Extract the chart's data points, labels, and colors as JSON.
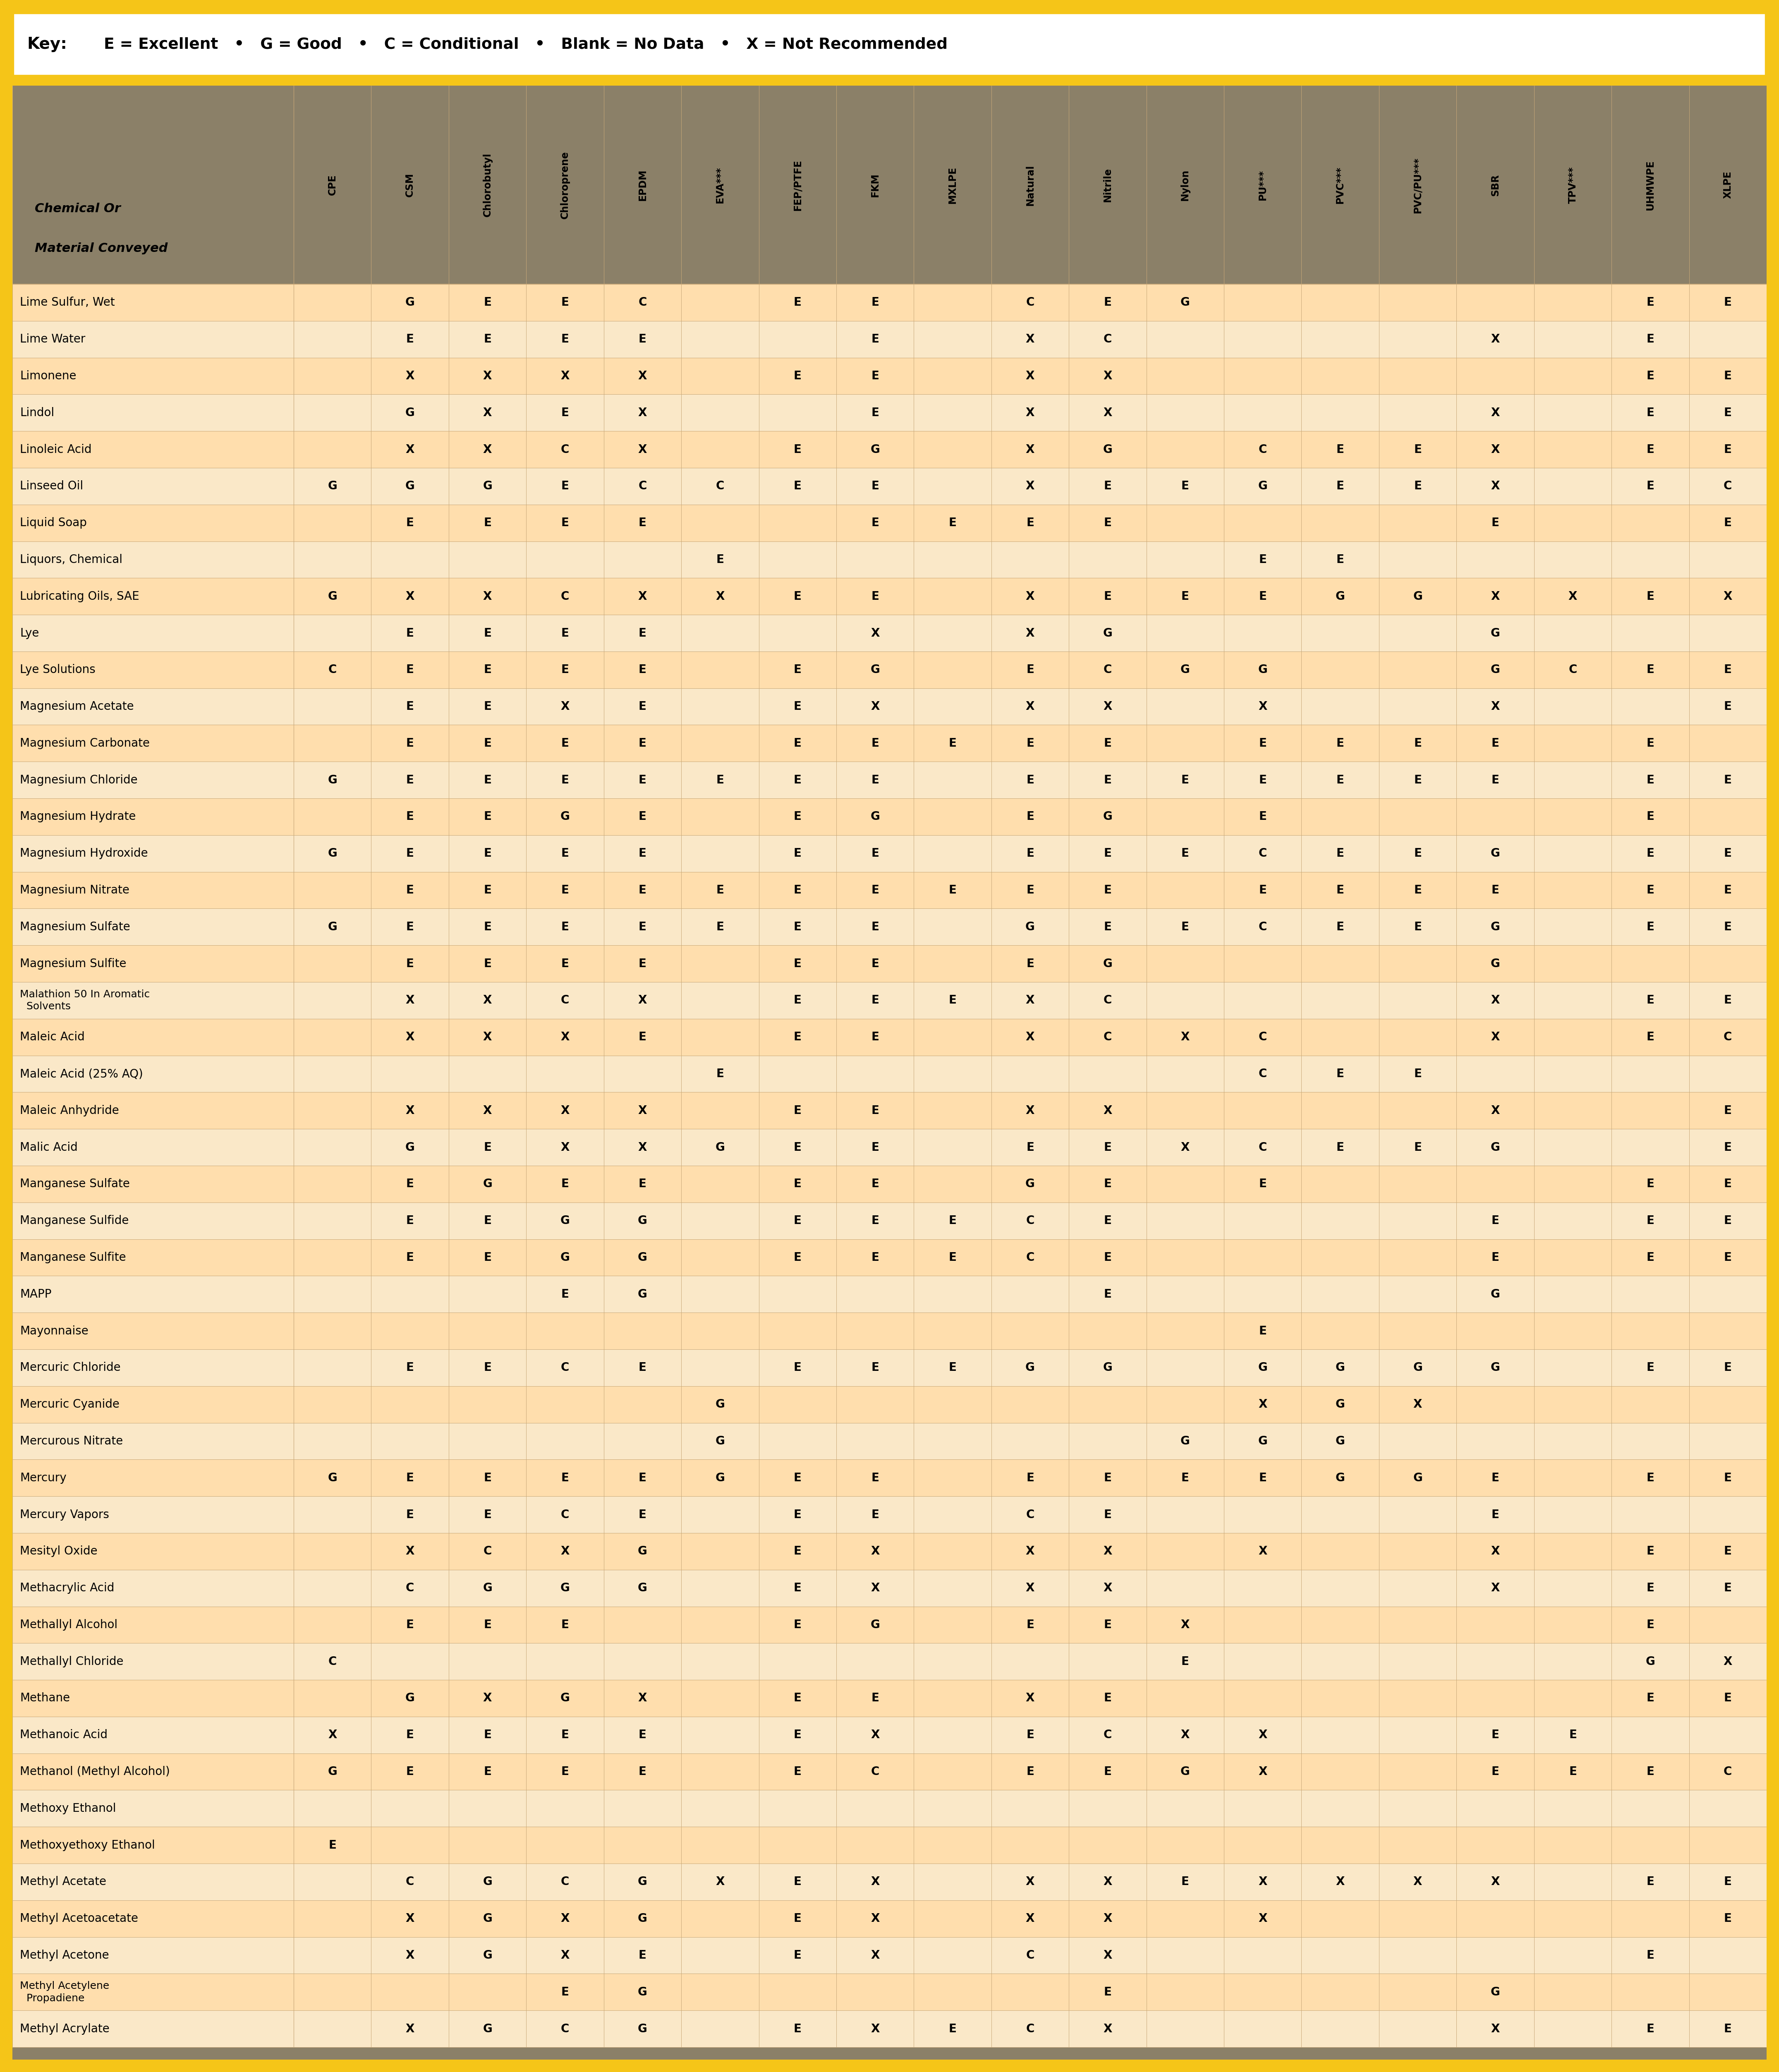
{
  "key_text_bold": "Key:",
  "key_text_normal": "  E = Excellent   •   G = Good   •   C = Conditional   •   Blank = No Data   •   X = Not Recommended",
  "header_bg": "#8B8068",
  "row_bg_even": "#FFDEAD",
  "row_bg_odd": "#FAE8C8",
  "outer_border": "#F5C518",
  "key_bg": "#FFFFFF",
  "bottom_strip_color": "#8B8068",
  "grid_color": "#C8A878",
  "col_header_label": "Chemical Or\nMaterial Conveyed",
  "columns": [
    "CPE",
    "CSM",
    "Chlorobutyl",
    "Chloroprene",
    "EPDM",
    "EVA***",
    "FEP/PTFE",
    "FKM",
    "MXLPE",
    "Natural",
    "Nitrile",
    "Nylon",
    "PU***",
    "PVC***",
    "PVC/PU***",
    "SBR",
    "TPV***",
    "UHMWPE",
    "XLPE"
  ],
  "rows": [
    {
      "chemical": "Lime Sulfur, Wet",
      "vals": [
        "",
        "G",
        "E",
        "E",
        "C",
        "",
        "E",
        "E",
        "",
        "C",
        "E",
        "G",
        "",
        "",
        "",
        "",
        "",
        "E",
        "E"
      ]
    },
    {
      "chemical": "Lime Water",
      "vals": [
        "",
        "E",
        "E",
        "E",
        "E",
        "",
        "",
        "E",
        "",
        "X",
        "C",
        "",
        "",
        "",
        "",
        "X",
        "",
        "E",
        ""
      ]
    },
    {
      "chemical": "Limonene",
      "vals": [
        "",
        "X",
        "X",
        "X",
        "X",
        "",
        "E",
        "E",
        "",
        "X",
        "X",
        "",
        "",
        "",
        "",
        "",
        "",
        "E",
        "E"
      ]
    },
    {
      "chemical": "Lindol",
      "vals": [
        "",
        "G",
        "X",
        "E",
        "X",
        "",
        "",
        "E",
        "",
        "X",
        "X",
        "",
        "",
        "",
        "",
        "X",
        "",
        "E",
        "E"
      ]
    },
    {
      "chemical": "Linoleic Acid",
      "vals": [
        "",
        "X",
        "X",
        "C",
        "X",
        "",
        "E",
        "G",
        "",
        "X",
        "G",
        "",
        "C",
        "E",
        "E",
        "X",
        "",
        "E",
        "E"
      ]
    },
    {
      "chemical": "Linseed Oil",
      "vals": [
        "G",
        "G",
        "G",
        "E",
        "C",
        "C",
        "E",
        "E",
        "",
        "X",
        "E",
        "E",
        "G",
        "E",
        "E",
        "X",
        "",
        "E",
        "C"
      ]
    },
    {
      "chemical": "Liquid Soap",
      "vals": [
        "",
        "E",
        "E",
        "E",
        "E",
        "",
        "",
        "E",
        "E",
        "E",
        "E",
        "",
        "",
        "",
        "",
        "E",
        "",
        "",
        "E"
      ]
    },
    {
      "chemical": "Liquors, Chemical",
      "vals": [
        "",
        "",
        "",
        "",
        "",
        "E",
        "",
        "",
        "",
        "",
        "",
        "",
        "E",
        "E",
        "",
        "",
        "",
        "",
        ""
      ]
    },
    {
      "chemical": "Lubricating Oils, SAE",
      "vals": [
        "G",
        "X",
        "X",
        "C",
        "X",
        "X",
        "E",
        "E",
        "",
        "X",
        "E",
        "E",
        "E",
        "G",
        "G",
        "X",
        "X",
        "E",
        "X"
      ]
    },
    {
      "chemical": "Lye",
      "vals": [
        "",
        "E",
        "E",
        "E",
        "E",
        "",
        "",
        "X",
        "",
        "X",
        "G",
        "",
        "",
        "",
        "",
        "G",
        "",
        "",
        ""
      ]
    },
    {
      "chemical": "Lye Solutions",
      "vals": [
        "C",
        "E",
        "E",
        "E",
        "E",
        "",
        "E",
        "G",
        "",
        "E",
        "C",
        "G",
        "G",
        "",
        "",
        "G",
        "C",
        "E",
        "E"
      ]
    },
    {
      "chemical": "Magnesium Acetate",
      "vals": [
        "",
        "E",
        "E",
        "X",
        "E",
        "",
        "E",
        "X",
        "",
        "X",
        "X",
        "",
        "X",
        "",
        "",
        "X",
        "",
        "",
        "E"
      ]
    },
    {
      "chemical": "Magnesium Carbonate",
      "vals": [
        "",
        "E",
        "E",
        "E",
        "E",
        "",
        "E",
        "E",
        "E",
        "E",
        "E",
        "",
        "E",
        "E",
        "E",
        "E",
        "",
        "E",
        ""
      ]
    },
    {
      "chemical": "Magnesium Chloride",
      "vals": [
        "G",
        "E",
        "E",
        "E",
        "E",
        "E",
        "E",
        "E",
        "",
        "E",
        "E",
        "E",
        "E",
        "E",
        "E",
        "E",
        "",
        "E",
        "E"
      ]
    },
    {
      "chemical": "Magnesium Hydrate",
      "vals": [
        "",
        "E",
        "E",
        "G",
        "E",
        "",
        "E",
        "G",
        "",
        "E",
        "G",
        "",
        "E",
        "",
        "",
        "",
        "",
        "E",
        ""
      ]
    },
    {
      "chemical": "Magnesium Hydroxide",
      "vals": [
        "G",
        "E",
        "E",
        "E",
        "E",
        "",
        "E",
        "E",
        "",
        "E",
        "E",
        "E",
        "C",
        "E",
        "E",
        "G",
        "",
        "E",
        "E"
      ]
    },
    {
      "chemical": "Magnesium Nitrate",
      "vals": [
        "",
        "E",
        "E",
        "E",
        "E",
        "E",
        "E",
        "E",
        "E",
        "E",
        "E",
        "",
        "E",
        "E",
        "E",
        "E",
        "",
        "E",
        "E"
      ]
    },
    {
      "chemical": "Magnesium Sulfate",
      "vals": [
        "G",
        "E",
        "E",
        "E",
        "E",
        "E",
        "E",
        "E",
        "",
        "G",
        "E",
        "E",
        "C",
        "E",
        "E",
        "G",
        "",
        "E",
        "E"
      ]
    },
    {
      "chemical": "Magnesium Sulfite",
      "vals": [
        "",
        "E",
        "E",
        "E",
        "E",
        "",
        "E",
        "E",
        "",
        "E",
        "G",
        "",
        "",
        "",
        "",
        "G",
        "",
        "",
        ""
      ]
    },
    {
      "chemical": "Malathion 50 In Aromatic\n  Solvents",
      "vals": [
        "",
        "X",
        "X",
        "C",
        "X",
        "",
        "E",
        "E",
        "E",
        "X",
        "C",
        "",
        "",
        "",
        "",
        "X",
        "",
        "E",
        "E"
      ]
    },
    {
      "chemical": "Maleic Acid",
      "vals": [
        "",
        "X",
        "X",
        "X",
        "E",
        "",
        "E",
        "E",
        "",
        "X",
        "C",
        "X",
        "C",
        "",
        "",
        "X",
        "",
        "E",
        "C"
      ]
    },
    {
      "chemical": "Maleic Acid (25% AQ)",
      "vals": [
        "",
        "",
        "",
        "",
        "",
        "E",
        "",
        "",
        "",
        "",
        "",
        "",
        "C",
        "E",
        "E",
        "",
        "",
        "",
        ""
      ]
    },
    {
      "chemical": "Maleic Anhydride",
      "vals": [
        "",
        "X",
        "X",
        "X",
        "X",
        "",
        "E",
        "E",
        "",
        "X",
        "X",
        "",
        "",
        "",
        "",
        "X",
        "",
        "",
        "E"
      ]
    },
    {
      "chemical": "Malic Acid",
      "vals": [
        "",
        "G",
        "E",
        "X",
        "X",
        "G",
        "E",
        "E",
        "",
        "E",
        "E",
        "X",
        "C",
        "E",
        "E",
        "G",
        "",
        "",
        "E"
      ]
    },
    {
      "chemical": "Manganese Sulfate",
      "vals": [
        "",
        "E",
        "G",
        "E",
        "E",
        "",
        "E",
        "E",
        "",
        "G",
        "E",
        "",
        "E",
        "",
        "",
        "",
        "",
        "E",
        "E"
      ]
    },
    {
      "chemical": "Manganese Sulfide",
      "vals": [
        "",
        "E",
        "E",
        "G",
        "G",
        "",
        "E",
        "E",
        "E",
        "C",
        "E",
        "",
        "",
        "",
        "",
        "E",
        "",
        "E",
        "E"
      ]
    },
    {
      "chemical": "Manganese Sulfite",
      "vals": [
        "",
        "E",
        "E",
        "G",
        "G",
        "",
        "E",
        "E",
        "E",
        "C",
        "E",
        "",
        "",
        "",
        "",
        "E",
        "",
        "E",
        "E"
      ]
    },
    {
      "chemical": "MAPP",
      "vals": [
        "",
        "",
        "",
        "E",
        "G",
        "",
        "",
        "",
        "",
        "",
        "E",
        "",
        "",
        "",
        "",
        "G",
        "",
        "",
        ""
      ]
    },
    {
      "chemical": "Mayonnaise",
      "vals": [
        "",
        "",
        "",
        "",
        "",
        "",
        "",
        "",
        "",
        "",
        "",
        "",
        "E",
        "",
        "",
        "",
        "",
        "",
        ""
      ]
    },
    {
      "chemical": "Mercuric Chloride",
      "vals": [
        "",
        "E",
        "E",
        "C",
        "E",
        "",
        "E",
        "E",
        "E",
        "G",
        "G",
        "",
        "G",
        "G",
        "G",
        "G",
        "",
        "E",
        "E"
      ]
    },
    {
      "chemical": "Mercuric Cyanide",
      "vals": [
        "",
        "",
        "",
        "",
        "",
        "G",
        "",
        "",
        "",
        "",
        "",
        "",
        "X",
        "G",
        "X",
        "",
        "",
        "",
        ""
      ]
    },
    {
      "chemical": "Mercurous Nitrate",
      "vals": [
        "",
        "",
        "",
        "",
        "",
        "G",
        "",
        "",
        "",
        "",
        "",
        "G",
        "G",
        "G",
        "",
        "",
        "",
        "",
        ""
      ]
    },
    {
      "chemical": "Mercury",
      "vals": [
        "G",
        "E",
        "E",
        "E",
        "E",
        "G",
        "E",
        "E",
        "",
        "E",
        "E",
        "E",
        "E",
        "G",
        "G",
        "E",
        "",
        "E",
        "E"
      ]
    },
    {
      "chemical": "Mercury Vapors",
      "vals": [
        "",
        "E",
        "E",
        "C",
        "E",
        "",
        "E",
        "E",
        "",
        "C",
        "E",
        "",
        "",
        "",
        "",
        "E",
        "",
        "",
        ""
      ]
    },
    {
      "chemical": "Mesityl Oxide",
      "vals": [
        "",
        "X",
        "C",
        "X",
        "G",
        "",
        "E",
        "X",
        "",
        "X",
        "X",
        "",
        "X",
        "",
        "",
        "X",
        "",
        "E",
        "E"
      ]
    },
    {
      "chemical": "Methacrylic Acid",
      "vals": [
        "",
        "C",
        "G",
        "G",
        "G",
        "",
        "E",
        "X",
        "",
        "X",
        "X",
        "",
        "",
        "",
        "",
        "X",
        "",
        "E",
        "E"
      ]
    },
    {
      "chemical": "Methallyl Alcohol",
      "vals": [
        "",
        "E",
        "E",
        "E",
        "",
        "",
        "E",
        "G",
        "",
        "E",
        "E",
        "X",
        "",
        "",
        "",
        "",
        "",
        "E",
        ""
      ]
    },
    {
      "chemical": "Methallyl Chloride",
      "vals": [
        "C",
        "",
        "",
        "",
        "",
        "",
        "",
        "",
        "",
        "",
        "",
        "E",
        "",
        "",
        "",
        "",
        "",
        "G",
        "X"
      ]
    },
    {
      "chemical": "Methane",
      "vals": [
        "",
        "G",
        "X",
        "G",
        "X",
        "",
        "E",
        "E",
        "",
        "X",
        "E",
        "",
        "",
        "",
        "",
        "",
        "",
        "E",
        "E"
      ]
    },
    {
      "chemical": "Methanoic Acid",
      "vals": [
        "X",
        "E",
        "E",
        "E",
        "E",
        "",
        "E",
        "X",
        "",
        "E",
        "C",
        "X",
        "X",
        "",
        "",
        "E",
        "E",
        "",
        ""
      ]
    },
    {
      "chemical": "Methanol (Methyl Alcohol)",
      "vals": [
        "G",
        "E",
        "E",
        "E",
        "E",
        "",
        "E",
        "C",
        "",
        "E",
        "E",
        "G",
        "X",
        "",
        "",
        "E",
        "E",
        "E",
        "C"
      ]
    },
    {
      "chemical": "Methoxy Ethanol",
      "vals": [
        "",
        "",
        "",
        "",
        "",
        "",
        "",
        "",
        "",
        "",
        "",
        "",
        "",
        "",
        "",
        "",
        "",
        "",
        ""
      ]
    },
    {
      "chemical": "Methoxyethoxy Ethanol",
      "vals": [
        "E",
        "",
        "",
        "",
        "",
        "",
        "",
        "",
        "",
        "",
        "",
        "",
        "",
        "",
        "",
        "",
        "",
        "",
        ""
      ]
    },
    {
      "chemical": "Methyl Acetate",
      "vals": [
        "",
        "C",
        "G",
        "C",
        "G",
        "X",
        "E",
        "X",
        "",
        "X",
        "X",
        "E",
        "X",
        "X",
        "X",
        "X",
        "",
        "E",
        "E"
      ]
    },
    {
      "chemical": "Methyl Acetoacetate",
      "vals": [
        "",
        "X",
        "G",
        "X",
        "G",
        "",
        "E",
        "X",
        "",
        "X",
        "X",
        "",
        "X",
        "",
        "",
        "",
        "",
        "",
        "E"
      ]
    },
    {
      "chemical": "Methyl Acetone",
      "vals": [
        "",
        "X",
        "G",
        "X",
        "E",
        "",
        "E",
        "X",
        "",
        "C",
        "X",
        "",
        "",
        "",
        "",
        "",
        "",
        "E",
        ""
      ]
    },
    {
      "chemical": "Methyl Acetylene\n  Propadiene",
      "vals": [
        "",
        "",
        "",
        "E",
        "G",
        "",
        "",
        "",
        "",
        "",
        "E",
        "",
        "",
        "",
        "",
        "G",
        "",
        "",
        ""
      ]
    },
    {
      "chemical": "Methyl Acrylate",
      "vals": [
        "",
        "X",
        "G",
        "C",
        "G",
        "",
        "E",
        "X",
        "E",
        "C",
        "X",
        "",
        "",
        "",
        "",
        "X",
        "",
        "E",
        "E"
      ]
    }
  ]
}
